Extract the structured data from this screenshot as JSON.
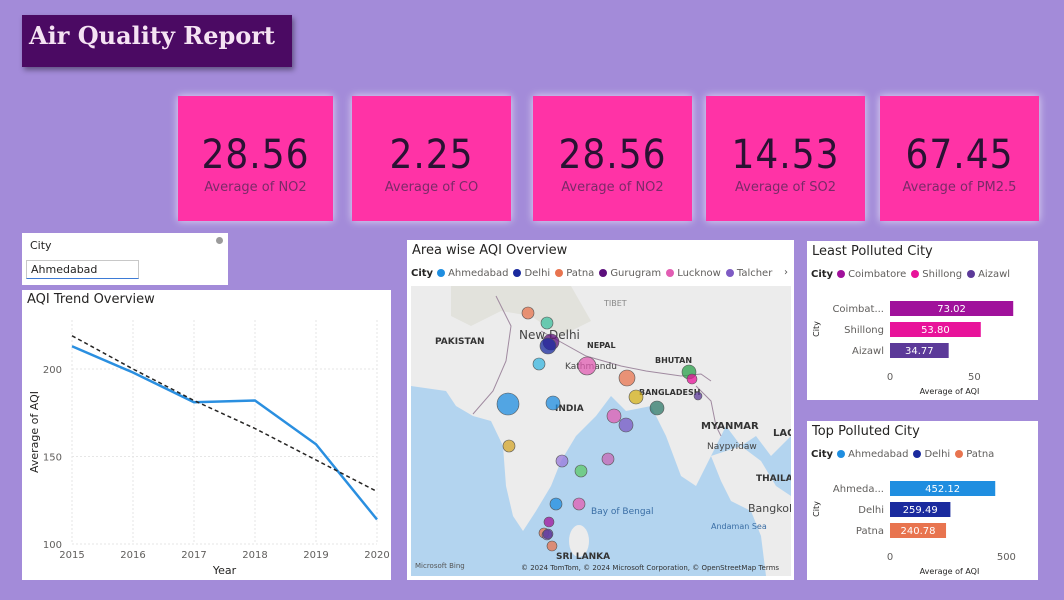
{
  "report_title": "Air Quality Report",
  "kpis": [
    {
      "value": "28.56",
      "label": "Average of NO2"
    },
    {
      "value": "2.25",
      "label": "Average of CO"
    },
    {
      "value": "28.56",
      "label": "Average of NO2"
    },
    {
      "value": "14.53",
      "label": "Average of SO2"
    },
    {
      "value": "67.45",
      "label": "Average of PM2.5"
    }
  ],
  "slicer": {
    "label": "City",
    "selected": "Ahmedabad"
  },
  "trend": {
    "title": "AQI Trend Overview",
    "xlabel": "Year",
    "ylabel": "Average of AQI",
    "line_color": "#2a8fe0"
  },
  "map": {
    "title": "Area wise AQI Overview",
    "legend_label": "City",
    "legend": [
      {
        "name": "Ahmedabad",
        "color": "#1f8ee0"
      },
      {
        "name": "Delhi",
        "color": "#1a2a9e"
      },
      {
        "name": "Patna",
        "color": "#e8744f"
      },
      {
        "name": "Gurugram",
        "color": "#5c0f7c"
      },
      {
        "name": "Lucknow",
        "color": "#e25db3"
      },
      {
        "name": "Talcher",
        "color": "#7e5bc4"
      }
    ],
    "places": {
      "pakistan": "PAKISTAN",
      "new_delhi": "New Delhi",
      "nepal": "NEPAL",
      "kathmandu": "Kathmandu",
      "tibet": "TIBET",
      "bhutan": "BHUTAN",
      "bangladesh": "BANGLADESH",
      "india": "INDIA",
      "myanmar": "MYANMAR",
      "naypyidaw": "Naypyidaw",
      "bay_of_bengal": "Bay of Bengal",
      "andaman_sea": "Andaman Sea",
      "thailand": "THAILAND",
      "bangkok": "Bangkok",
      "sri_lanka": "SRI LANKA",
      "lao": "LAO"
    },
    "attribution": "© 2024 TomTom, © 2024 Microsoft Corporation, © OpenStreetMap  Terms",
    "bing": "Microsoft Bing"
  },
  "least_polluted": {
    "title": "Least Polluted City",
    "legend_label": "City",
    "xlabel": "Average of AQI",
    "ylabel": "City",
    "bars": [
      {
        "label": "Coimbat...",
        "value": 73.02,
        "value_text": "73.02",
        "color": "#a0119b"
      },
      {
        "label": "Shillong",
        "value": 53.8,
        "value_text": "53.80",
        "color": "#e8139a"
      },
      {
        "label": "Aizawl",
        "value": 34.77,
        "value_text": "34.77",
        "color": "#5c3a99"
      }
    ],
    "legend": [
      {
        "name": "Coimbatore",
        "color": "#a0119b"
      },
      {
        "name": "Shillong",
        "color": "#e8139a"
      },
      {
        "name": "Aizawl",
        "color": "#5c3a99"
      }
    ]
  },
  "top_polluted": {
    "title": "Top Polluted City",
    "legend_label": "City",
    "xlabel": "Average of AQI",
    "ylabel": "City",
    "bars": [
      {
        "label": "Ahmeda...",
        "value": 452.12,
        "value_text": "452.12",
        "color": "#1f8ee0"
      },
      {
        "label": "Delhi",
        "value": 259.49,
        "value_text": "259.49",
        "color": "#1a2a9e"
      },
      {
        "label": "Patna",
        "value": 240.78,
        "value_text": "240.78",
        "color": "#e8744f"
      }
    ],
    "legend": [
      {
        "name": "Ahmedabad",
        "color": "#1f8ee0"
      },
      {
        "name": "Delhi",
        "color": "#1a2a9e"
      },
      {
        "name": "Patna",
        "color": "#e8744f"
      }
    ]
  },
  "chart_data": [
    {
      "type": "line",
      "title": "AQI Trend Overview",
      "xlabel": "Year",
      "ylabel": "Average of AQI",
      "x": [
        2015,
        2016,
        2017,
        2018,
        2019,
        2020
      ],
      "series": [
        {
          "values": [
            213,
            198,
            181,
            182,
            157,
            114
          ]
        },
        {
          "values": [
            219,
            200,
            182,
            166,
            148,
            130
          ]
        }
      ],
      "yticks": [
        100,
        150,
        200
      ],
      "ylim": [
        100,
        228
      ],
      "grid": true
    },
    {
      "type": "bar",
      "title": "Least Polluted City",
      "categories": [
        "Coimbatore",
        "Shillong",
        "Aizawl"
      ],
      "values": [
        73.02,
        53.8,
        34.77
      ],
      "xlabel": "Average of AQI",
      "ylabel": "City",
      "xticks": [
        0,
        50
      ],
      "xlim": [
        0,
        80
      ]
    },
    {
      "type": "bar",
      "title": "Top Polluted City",
      "categories": [
        "Ahmedabad",
        "Delhi",
        "Patna"
      ],
      "values": [
        452.12,
        259.49,
        240.78
      ],
      "xlabel": "Average of AQI",
      "ylabel": "City",
      "xticks": [
        0,
        500
      ],
      "xlim": [
        0,
        580
      ]
    }
  ]
}
